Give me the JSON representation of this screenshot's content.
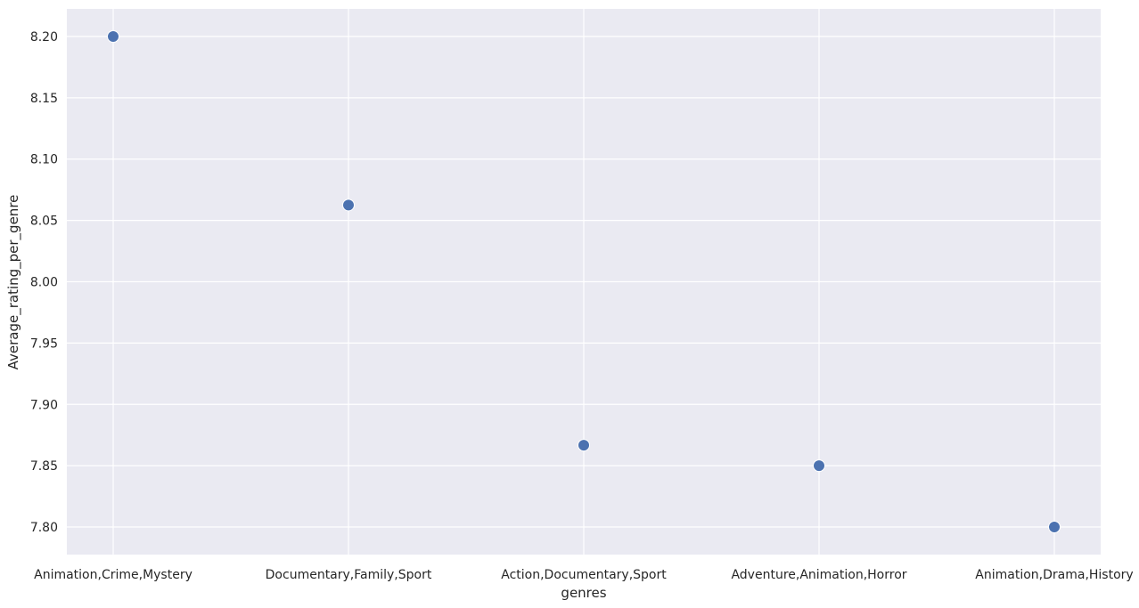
{
  "chart_data": {
    "type": "scatter",
    "title": "",
    "xlabel": "genres",
    "ylabel": "Average_rating_per_genre",
    "categories": [
      "Animation,Crime,Mystery",
      "Documentary,Family,Sport",
      "Action,Documentary,Sport",
      "Adventure,Animation,Horror",
      "Animation,Drama,History"
    ],
    "values": [
      8.2,
      8.0625,
      7.8667,
      7.85,
      7.8
    ],
    "yticks": [
      "7.80",
      "7.85",
      "7.90",
      "7.95",
      "8.00",
      "8.05",
      "8.10",
      "8.15",
      "8.20"
    ],
    "ylim": [
      7.7775,
      8.2225
    ],
    "grid": true,
    "legend": "none",
    "colors": {
      "background": "#eaeaf2",
      "grid": "#ffffff",
      "marker": "#4c72b0",
      "marker_edge": "#ffffff",
      "text": "#262626"
    }
  }
}
